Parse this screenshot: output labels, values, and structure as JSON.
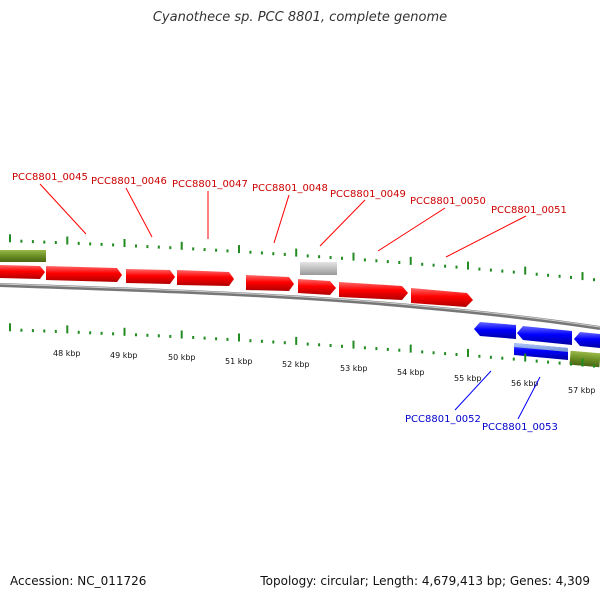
{
  "title": "Cyanothece sp. PCC 8801, complete genome",
  "footer": {
    "accession": "Accession: NC_011726",
    "summary": "Topology: circular; Length: 4,679,413 bp; Genes: 4,309"
  },
  "colors": {
    "forward_gene": "#ff0000",
    "reverse_gene": "#0000ff",
    "rna_gene": "#6b8e23",
    "other_feature": "#c0c0c0",
    "ticks": "#228b22",
    "forward_label": "#cc0000",
    "reverse_label": "#0000cc",
    "backbone": "#888888"
  },
  "scale_labels": [
    "48 kbp",
    "49 kbp",
    "50 kbp",
    "51 kbp",
    "52 kbp",
    "53 kbp",
    "54 kbp",
    "55 kbp",
    "56 kbp",
    "57 kbp"
  ],
  "forward_labels": [
    "PCC8801_0045",
    "PCC8801_0046",
    "PCC8801_0047",
    "PCC8801_0048",
    "PCC8801_0049",
    "PCC8801_0050",
    "PCC8801_0051"
  ],
  "reverse_labels": [
    "PCC8801_0052",
    "PCC8801_0053"
  ]
}
